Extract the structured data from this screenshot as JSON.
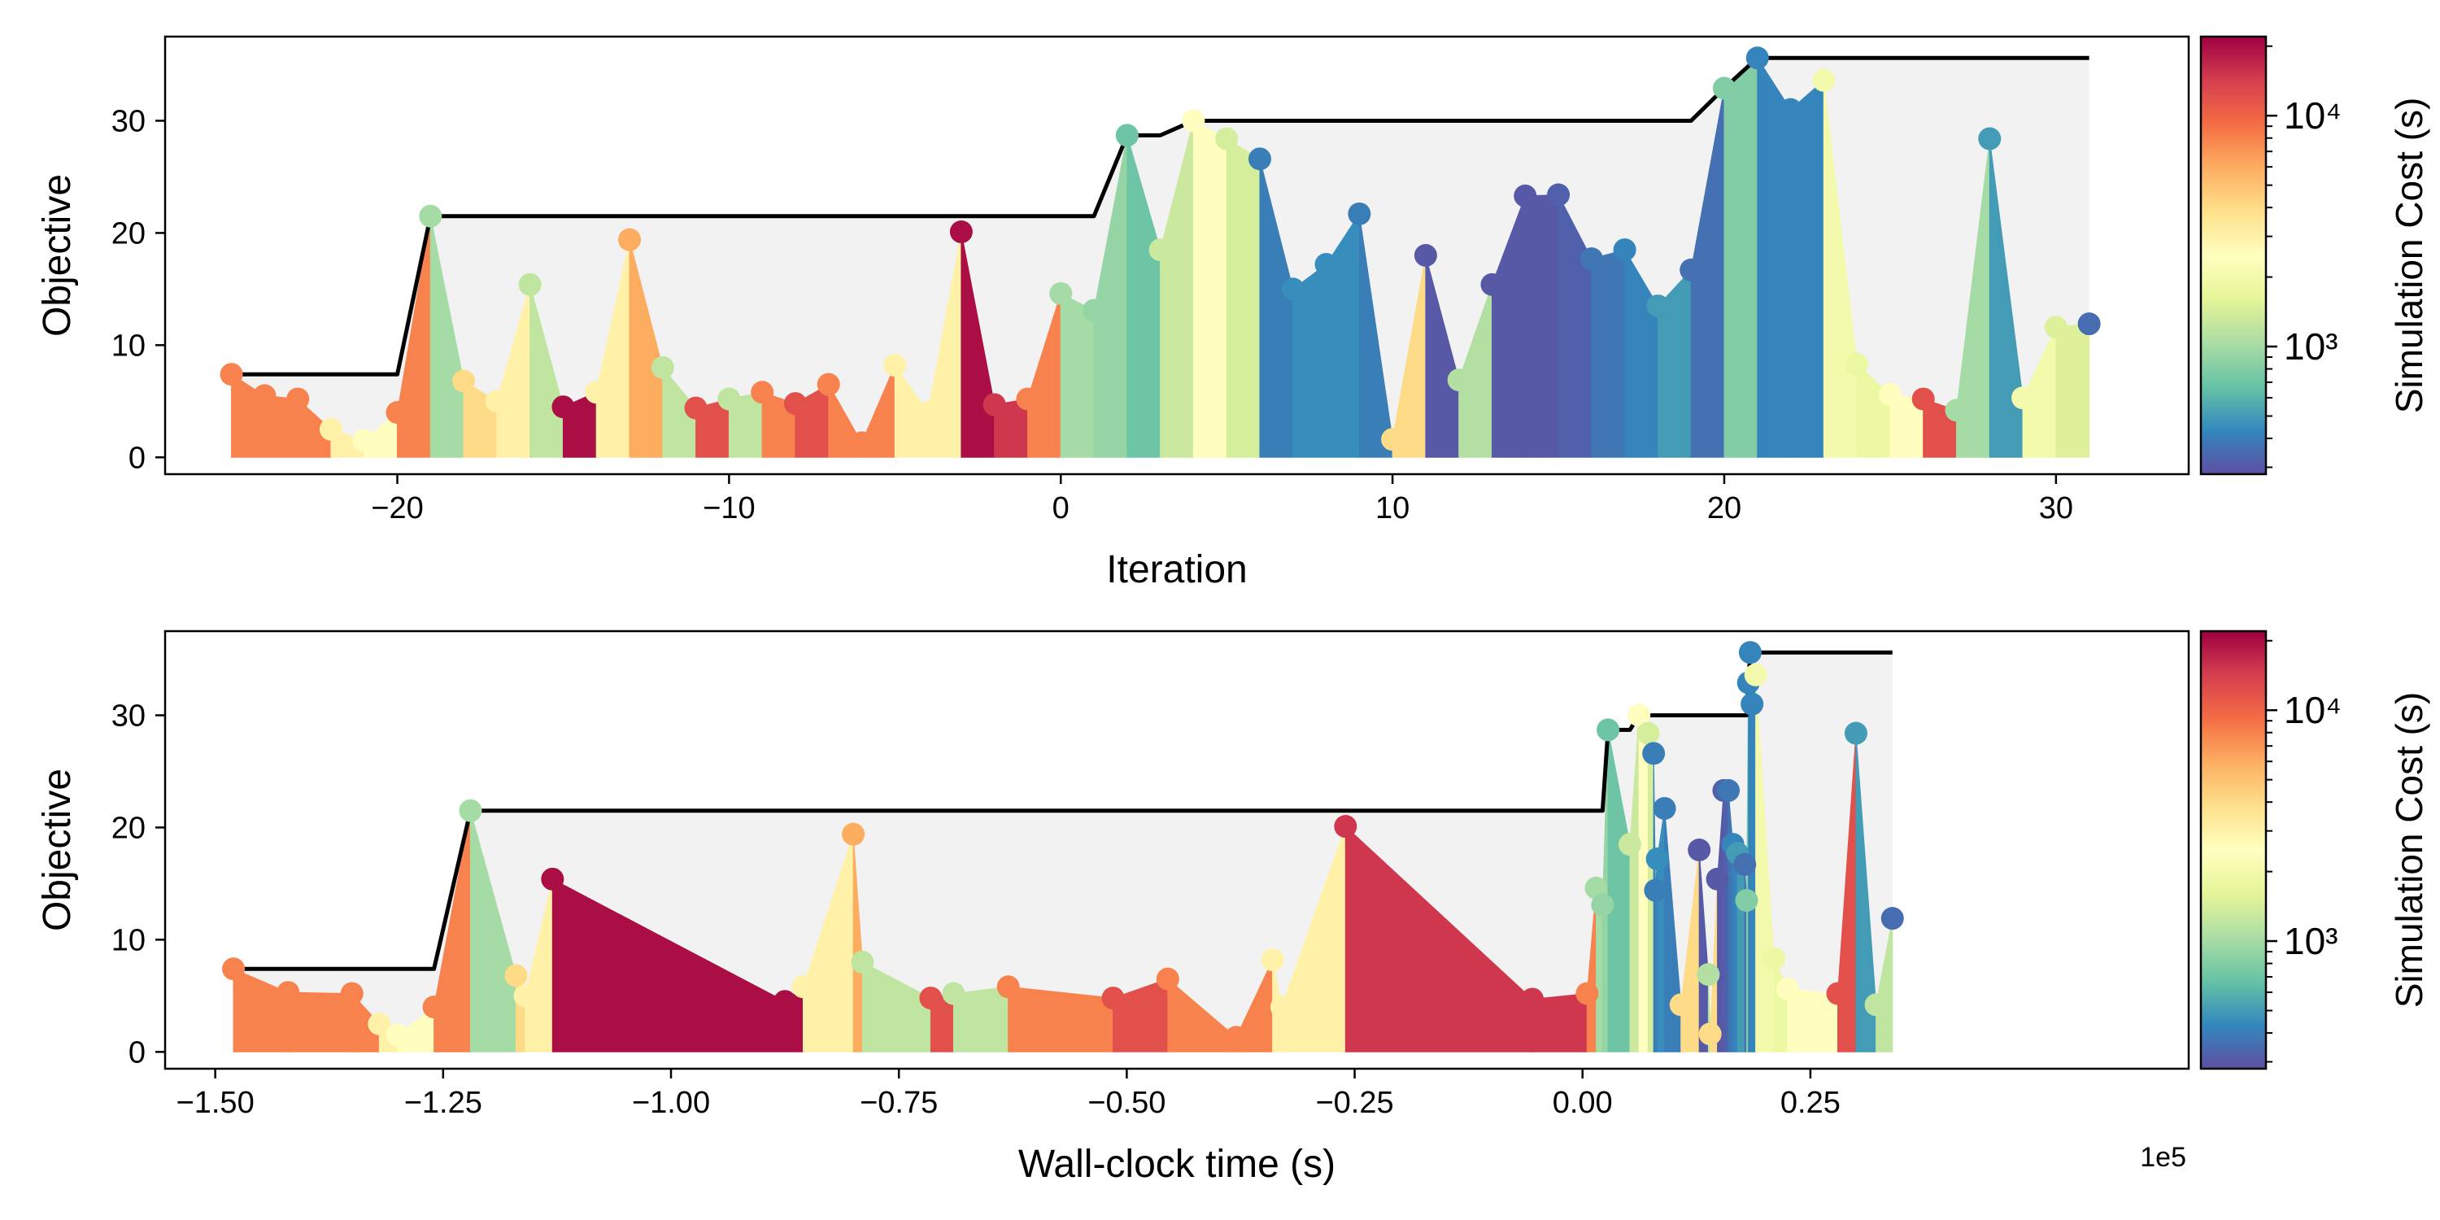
{
  "chart_data": [
    {
      "type": "area",
      "xlabel": "Iteration",
      "ylabel": "Objective",
      "xlim": [
        -27,
        34
      ],
      "ylim": [
        -1.5,
        37.5
      ],
      "xticks": [
        -20,
        -10,
        0,
        10,
        20,
        30
      ],
      "xtick_labels": [
        "−20",
        "−10",
        "0",
        "10",
        "20",
        "30"
      ],
      "yticks": [
        0,
        10,
        20,
        30
      ],
      "ytick_labels": [
        "0",
        "10",
        "20",
        "30"
      ],
      "offset_label": "",
      "x": [
        -25,
        -24,
        -23,
        -22,
        -21,
        -20,
        -19,
        -18,
        -17,
        -16,
        -15,
        -14,
        -13,
        -12,
        -11,
        -10,
        -9,
        -8,
        -7,
        -6,
        -5,
        -4,
        -3,
        -2,
        -1,
        0,
        1,
        2,
        3,
        4,
        5,
        6,
        7,
        8,
        9,
        10,
        11,
        12,
        13,
        14,
        15,
        16,
        17,
        18,
        19,
        20,
        21,
        22,
        23,
        24,
        25,
        26,
        27,
        28,
        29,
        30,
        31
      ],
      "y": [
        7.4,
        5.5,
        5.2,
        2.5,
        1.5,
        4.0,
        21.5,
        6.8,
        5.0,
        15.4,
        4.5,
        5.8,
        19.4,
        8.0,
        4.4,
        5.2,
        5.8,
        4.8,
        6.5,
        1.3,
        8.2,
        4.0,
        20.1,
        4.7,
        5.2,
        14.6,
        13.1,
        28.7,
        18.5,
        30.0,
        28.4,
        26.6,
        15.0,
        17.2,
        21.7,
        1.6,
        18.0,
        6.9,
        15.4,
        23.3,
        23.4,
        17.7,
        18.5,
        13.5,
        16.7,
        32.9,
        35.6,
        31.0,
        33.6,
        8.3,
        5.6,
        5.2,
        4.2,
        28.4,
        5.3,
        11.6,
        11.9
      ],
      "cost": [
        8000,
        8000,
        8000,
        3000,
        2500,
        8000,
        1000,
        4000,
        3000,
        1200,
        20000,
        3000,
        6000,
        1200,
        12000,
        1200,
        8000,
        12000,
        8000,
        8000,
        3000,
        3000,
        20000,
        15000,
        8000,
        1000,
        900,
        700,
        1300,
        2500,
        1400,
        400,
        450,
        450,
        400,
        4000,
        300,
        1100,
        300,
        300,
        320,
        380,
        420,
        500,
        360,
        800,
        420,
        420,
        2000,
        1800,
        2500,
        12000,
        1000,
        500,
        2000,
        1500,
        350
      ],
      "best_so_far": [
        7.4,
        7.4,
        7.4,
        7.4,
        7.4,
        7.4,
        21.5,
        21.5,
        21.5,
        21.5,
        21.5,
        21.5,
        21.5,
        21.5,
        21.5,
        21.5,
        21.5,
        21.5,
        21.5,
        21.5,
        21.5,
        21.5,
        21.5,
        21.5,
        21.5,
        21.5,
        21.5,
        28.7,
        28.7,
        30.0,
        30.0,
        30.0,
        30.0,
        30.0,
        30.0,
        30.0,
        30.0,
        30.0,
        30.0,
        30.0,
        30.0,
        30.0,
        30.0,
        30.0,
        30.0,
        32.9,
        35.6,
        35.6,
        35.6,
        35.6,
        35.6,
        35.6,
        35.6,
        35.6,
        35.6,
        35.6,
        35.6
      ],
      "colorbar": {
        "label": "Simulation Cost (s)",
        "scale": "log",
        "range": [
          280,
          22000
        ],
        "tick_labels": [
          "10³",
          "10⁴"
        ],
        "tick_values": [
          1000,
          10000
        ]
      }
    },
    {
      "type": "area",
      "xlabel": "Wall-clock time (s)",
      "ylabel": "Objective",
      "xlim": [
        -1.555,
        0.665
      ],
      "ylim": [
        -1.5,
        37.5
      ],
      "xticks": [
        -1.5,
        -1.25,
        -1.0,
        -0.75,
        -0.5,
        -0.25,
        0.0,
        0.25
      ],
      "xtick_labels": [
        "−1.50",
        "−1.25",
        "−1.00",
        "−0.75",
        "−0.50",
        "−0.25",
        "0.00",
        "0.25"
      ],
      "yticks": [
        0,
        10,
        20,
        30
      ],
      "ytick_labels": [
        "0",
        "10",
        "20",
        "30"
      ],
      "offset_label": "1e5",
      "x": [
        -1.48,
        -1.42,
        -1.35,
        -1.32,
        -1.3,
        -1.26,
        -1.22,
        -1.17,
        -1.16,
        -1.13,
        -0.875,
        -0.855,
        -0.8,
        -0.79,
        -0.715,
        -0.69,
        -0.63,
        -0.515,
        -0.455,
        -0.38,
        -0.34,
        -0.33,
        -0.26,
        -0.055,
        0.005,
        0.015,
        0.022,
        0.028,
        0.052,
        0.062,
        0.072,
        0.078,
        0.08,
        0.082,
        0.09,
        0.108,
        0.128,
        0.138,
        0.14,
        0.148,
        0.155,
        0.16,
        0.165,
        0.17,
        0.178,
        0.18,
        0.182,
        0.184,
        0.186,
        0.19,
        0.21,
        0.225,
        0.28,
        0.3,
        0.322,
        0.34
      ],
      "y": [
        7.4,
        5.3,
        5.2,
        2.5,
        1.5,
        4.0,
        21.5,
        6.8,
        5.0,
        15.4,
        4.5,
        5.8,
        19.4,
        8.0,
        4.8,
        5.2,
        5.8,
        4.8,
        6.5,
        1.3,
        8.2,
        4.0,
        20.1,
        4.7,
        5.2,
        14.6,
        13.1,
        28.7,
        18.5,
        30.0,
        28.4,
        26.6,
        14.4,
        17.2,
        21.7,
        4.2,
        18.0,
        6.9,
        1.6,
        15.4,
        23.3,
        23.3,
        18.5,
        17.7,
        16.7,
        13.5,
        32.9,
        35.6,
        31.0,
        33.6,
        8.3,
        5.6,
        5.2,
        28.4,
        4.2,
        11.9
      ],
      "cost": [
        8000,
        8000,
        8000,
        3000,
        2500,
        8000,
        1000,
        4000,
        3000,
        20000,
        20000,
        3000,
        6000,
        1200,
        12000,
        1200,
        8000,
        12000,
        8000,
        8000,
        3000,
        3000,
        15000,
        15000,
        8000,
        1000,
        900,
        700,
        1300,
        2500,
        1400,
        400,
        400,
        450,
        400,
        4000,
        300,
        1100,
        4000,
        300,
        320,
        380,
        420,
        500,
        360,
        800,
        420,
        420,
        420,
        2000,
        1800,
        2500,
        12000,
        500,
        1200,
        350
      ],
      "best_so_far": [
        7.4,
        7.4,
        7.4,
        7.4,
        7.4,
        7.4,
        21.5,
        21.5,
        21.5,
        21.5,
        21.5,
        21.5,
        21.5,
        21.5,
        21.5,
        21.5,
        21.5,
        21.5,
        21.5,
        21.5,
        21.5,
        21.5,
        21.5,
        21.5,
        21.5,
        21.5,
        21.5,
        28.7,
        28.7,
        30.0,
        30.0,
        30.0,
        30.0,
        30.0,
        30.0,
        30.0,
        30.0,
        30.0,
        30.0,
        30.0,
        30.0,
        30.0,
        30.0,
        30.0,
        30.0,
        30.0,
        32.9,
        35.6,
        35.6,
        35.6,
        35.6,
        35.6,
        35.6,
        35.6,
        35.6,
        35.6
      ],
      "colorbar": {
        "label": "Simulation Cost (s)",
        "scale": "log",
        "range": [
          280,
          22000
        ],
        "tick_labels": [
          "10³",
          "10⁴"
        ],
        "tick_values": [
          1000,
          10000
        ]
      }
    }
  ]
}
